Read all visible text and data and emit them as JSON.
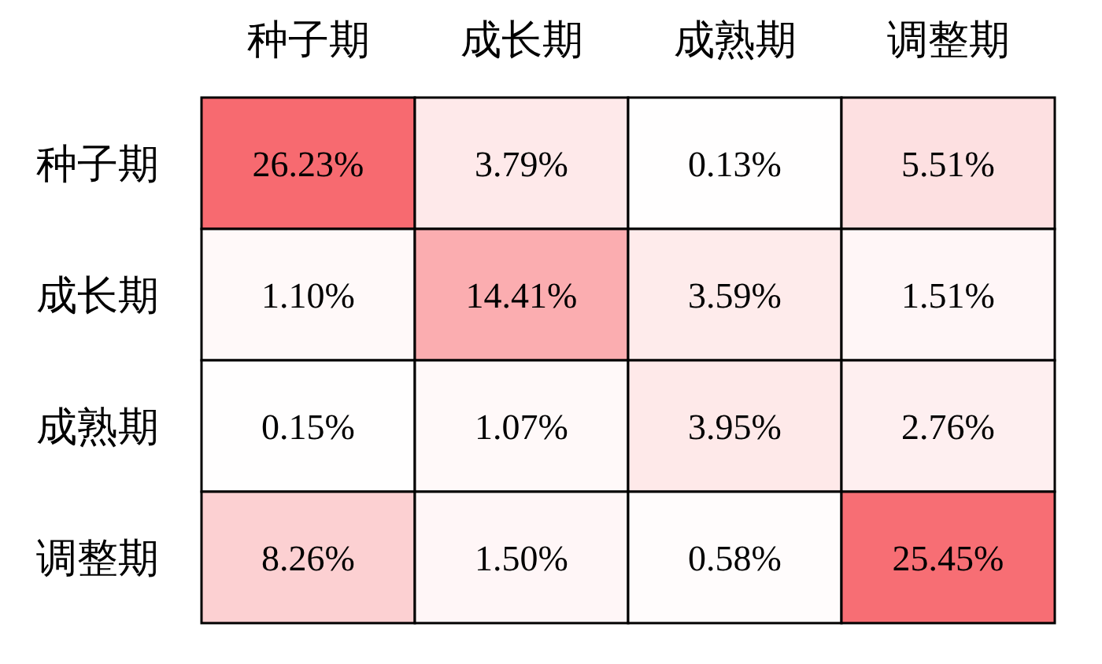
{
  "chart_data": {
    "type": "heatmap",
    "categories": [
      "种子期",
      "成长期",
      "成熟期",
      "调整期"
    ],
    "y_categories": [
      "种子期",
      "成长期",
      "成熟期",
      "调整期"
    ],
    "cells": [
      [
        26.23,
        3.79,
        0.13,
        5.51
      ],
      [
        1.1,
        14.41,
        3.59,
        1.51
      ],
      [
        0.15,
        1.07,
        3.95,
        2.76
      ],
      [
        8.26,
        1.5,
        0.58,
        25.45
      ]
    ],
    "cell_labels": [
      [
        "26.23%",
        "3.79%",
        "0.13%",
        "5.51%"
      ],
      [
        "1.10%",
        "14.41%",
        "3.59%",
        "1.51%"
      ],
      [
        "0.15%",
        "1.07%",
        "3.95%",
        "2.76%"
      ],
      [
        "8.26%",
        "1.50%",
        "0.58%",
        "25.45%"
      ]
    ]
  }
}
